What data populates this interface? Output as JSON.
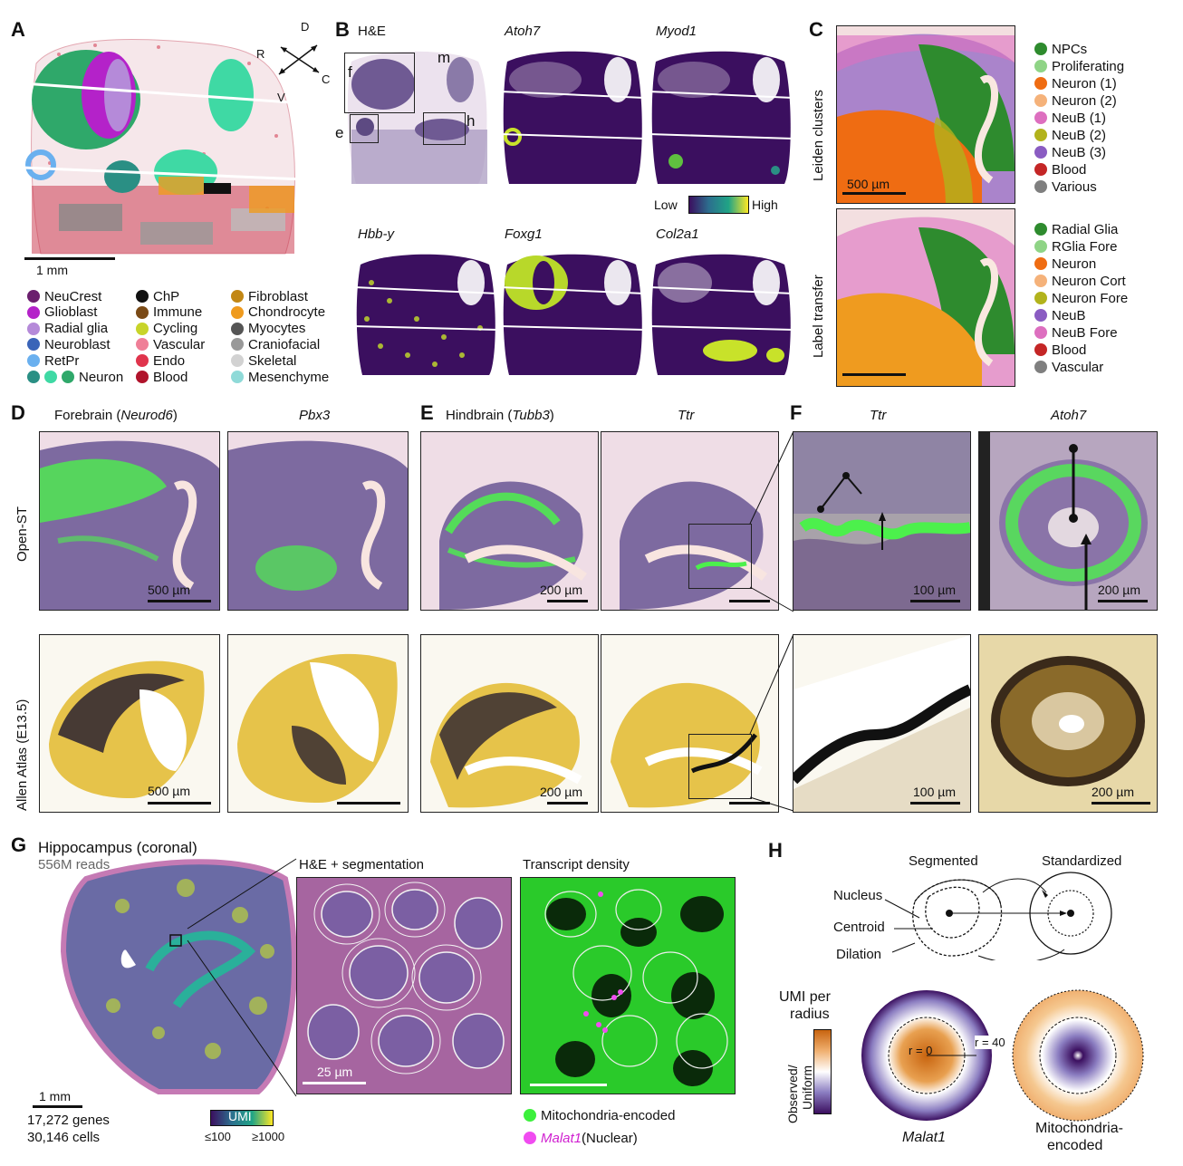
{
  "panels": {
    "A": {
      "letter": "A",
      "scalebar": "1 mm",
      "compass": {
        "d": "D",
        "r": "R",
        "c": "C",
        "v": "V"
      },
      "legend": [
        {
          "label": "NeuCrest",
          "color": "#6b1f6e"
        },
        {
          "label": "Glioblast",
          "color": "#b422c9"
        },
        {
          "label": "Radial glia",
          "color": "#b58ad9"
        },
        {
          "label": "Neuroblast",
          "color": "#3a64b8"
        },
        {
          "label": "RetPr",
          "color": "#6ab0ef"
        },
        {
          "label": "ChP",
          "color": "#111111"
        },
        {
          "label": "Immune",
          "color": "#7a4a16"
        },
        {
          "label": "Cycling",
          "color": "#c8d42a"
        },
        {
          "label": "Vascular",
          "color": "#ef7f97"
        },
        {
          "label": "Endo",
          "color": "#e0344c"
        },
        {
          "label": "Blood",
          "color": "#b0132b"
        },
        {
          "label": "Fibroblast",
          "color": "#c28715"
        },
        {
          "label": "Chondrocyte",
          "color": "#ef9b1f"
        },
        {
          "label": "Myocytes",
          "color": "#555555"
        },
        {
          "label": "Craniofacial",
          "color": "#999999"
        },
        {
          "label": "Skeletal",
          "color": "#d2d2d2"
        },
        {
          "label": "Mesenchyme",
          "color": "#8fdad8"
        }
      ],
      "neuron_label": "Neuron",
      "neuron_colors": [
        "#2a8f84",
        "#3fd9a4",
        "#2fa86a"
      ]
    },
    "B": {
      "letter": "B",
      "he_label": "H&E",
      "insets": {
        "f": "f",
        "m": "m",
        "e": "e",
        "h": "h"
      },
      "genes": [
        "Atoh7",
        "Myod1",
        "Hbb-y",
        "Foxg1",
        "Col2a1"
      ],
      "colorbar": {
        "low": "Low",
        "high": "High"
      }
    },
    "C": {
      "letter": "C",
      "row_labels": [
        "Leiden clusters",
        "Label transfer"
      ],
      "scalebar": "500 µm",
      "legend_top": [
        {
          "label": "NPCs",
          "color": "#2e8b2e"
        },
        {
          "label": "Proliferating",
          "color": "#8fd486"
        },
        {
          "label": "Neuron (1)",
          "color": "#ef6c12"
        },
        {
          "label": "Neuron (2)",
          "color": "#f5b27a"
        },
        {
          "label": "NeuB (1)",
          "color": "#dd6fbf"
        },
        {
          "label": "NeuB (2)",
          "color": "#b2b31c"
        },
        {
          "label": "NeuB (3)",
          "color": "#8a5cc2"
        },
        {
          "label": "Blood",
          "color": "#c42626"
        },
        {
          "label": "Various",
          "color": "#7f7f7f"
        }
      ],
      "legend_bottom": [
        {
          "label": "Radial Glia",
          "color": "#2e8b2e"
        },
        {
          "label": "RGlia Fore",
          "color": "#8fd486"
        },
        {
          "label": "Neuron",
          "color": "#ef6c12"
        },
        {
          "label": "Neuron Cort",
          "color": "#f5b27a"
        },
        {
          "label": "Neuron Fore",
          "color": "#b2b31c"
        },
        {
          "label": "NeuB",
          "color": "#8a5cc2"
        },
        {
          "label": "NeuB Fore",
          "color": "#dd6fbf"
        },
        {
          "label": "Blood",
          "color": "#c42626"
        },
        {
          "label": "Vascular",
          "color": "#7f7f7f"
        }
      ]
    },
    "D": {
      "letter": "D",
      "title1_prefix": "Forebrain (",
      "title1_gene": "Neurod6",
      "title1_suffix": ")",
      "title2": "Pbx3",
      "scalebar_top": "500 µm",
      "scalebar_bottom": "500 µm"
    },
    "E": {
      "letter": "E",
      "title1_prefix": "Hindbrain (",
      "title1_gene": "Tubb3",
      "title1_suffix": ")",
      "title2": "Ttr",
      "scalebar_top": "200 µm",
      "scalebar_bottom": "200 µm"
    },
    "F": {
      "letter": "F",
      "title1": "Ttr",
      "title2": "Atoh7",
      "scalebar_1": "100 µm",
      "scalebar_2": "200 µm",
      "scalebar_3": "100 µm",
      "scalebar_4": "200 µm"
    },
    "rows": {
      "open_st": "Open-ST",
      "allen": "Allen Atlas (E13.5)"
    },
    "G": {
      "letter": "G",
      "title": "Hippocampus (coronal)",
      "reads": "556M reads",
      "scalebar": "1 mm",
      "genes": "17,272 genes",
      "cells": "30,146 cells",
      "colorbar": {
        "label": "UMI",
        "low": "≤100",
        "high": "≥1000"
      },
      "he_title": "H&E + segmentation",
      "he_scalebar": "25 µm",
      "density_title": "Transcript density",
      "legend": [
        {
          "label": "Mitochondria-encoded",
          "color": "#3cf03c",
          "italic": false
        },
        {
          "label": "Malat1",
          "suffix": " (Nuclear)",
          "color": "#f04cf0",
          "italic": true
        }
      ]
    },
    "H": {
      "letter": "H",
      "segmented": "Segmented",
      "standardized": "Standardized",
      "nucleus": "Nucleus",
      "centroid": "Centroid",
      "dilation": "Dilation",
      "umi_title_1": "UMI per",
      "umi_title_2": "radius",
      "cbar_label_1": "Observed/",
      "cbar_label_2": "Uniform",
      "r0": "r = 0",
      "r40": "r = 40",
      "gene1": "Malat1",
      "gene2_1": "Mitochondria-",
      "gene2_2": "encoded"
    }
  },
  "colors": {
    "viridis_dark": "#3b0f5f",
    "he_purple": "#6f5a93",
    "he_pink": "#efdde6",
    "green_hl": "#4cf04c",
    "allen_yellow": "#e6c34a"
  }
}
